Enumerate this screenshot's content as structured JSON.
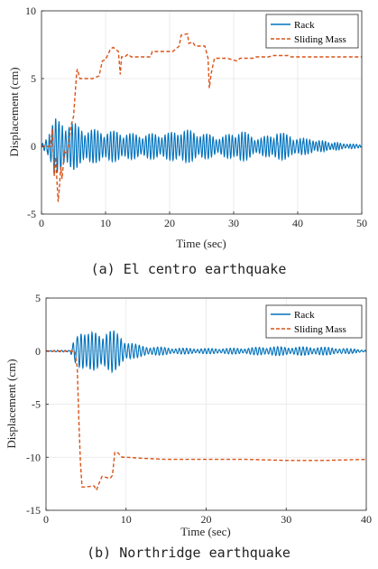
{
  "colors": {
    "rack": "#0072bd",
    "sliding": "#d95319",
    "grid": "#e6e6e6",
    "axis": "#262626"
  },
  "chart_data": [
    {
      "type": "line",
      "caption": "(a) El centro earthquake",
      "xlabel": "Time (sec)",
      "ylabel": "Displacement (cm)",
      "xlim": [
        0,
        50
      ],
      "ylim": [
        -5,
        10
      ],
      "xticks": [
        0,
        10,
        20,
        30,
        40,
        50
      ],
      "yticks": [
        -5,
        0,
        5,
        10
      ],
      "grid": true,
      "legend": "top-right",
      "series": [
        {
          "name": "Rack",
          "kind": "oscillation",
          "envelope": [
            [
              0,
              0.25
            ],
            [
              1.5,
              1.2
            ],
            [
              2,
              2.1
            ],
            [
              3,
              2.0
            ],
            [
              5,
              1.8
            ],
            [
              6,
              1.4
            ],
            [
              9,
              1.2
            ],
            [
              12,
              1.1
            ],
            [
              15,
              0.9
            ],
            [
              20,
              1.0
            ],
            [
              22,
              1.3
            ],
            [
              25,
              1.0
            ],
            [
              28,
              0.7
            ],
            [
              31,
              1.2
            ],
            [
              34,
              0.6
            ],
            [
              37,
              1.1
            ],
            [
              40,
              0.7
            ],
            [
              44,
              0.4
            ],
            [
              47,
              0.25
            ],
            [
              50,
              0.1
            ]
          ],
          "frequency_hz": 2.0
        },
        {
          "name": "Sliding Mass",
          "x": [
            0,
            1.4,
            1.7,
            2.0,
            2.2,
            2.6,
            2.8,
            3.0,
            3.2,
            3.6,
            4.0,
            4.6,
            5.0,
            5.5,
            5.6,
            6.0,
            8.0,
            9.0,
            9.5,
            10.0,
            10.8,
            11.2,
            12.0,
            12.3,
            12.5,
            13.0,
            13.5,
            14.0,
            17.0,
            17.3,
            20.5,
            21.5,
            21.8,
            22.8,
            23.0,
            23.6,
            24.0,
            25.5,
            26.0,
            26.2,
            26.5,
            27.0,
            29.0,
            30.5,
            31.0,
            33.0,
            33.5,
            35.5,
            36.0,
            38.5,
            39.0,
            42.5,
            43.0,
            50.0
          ],
          "y": [
            0,
            0,
            1.3,
            -2.2,
            -0.8,
            -4.1,
            -3.0,
            -1.5,
            -2.4,
            -0.4,
            -0.6,
            1.5,
            2.2,
            5.5,
            5.7,
            5.0,
            5.0,
            5.2,
            6.3,
            6.4,
            7.2,
            7.3,
            7.0,
            5.3,
            6.6,
            6.6,
            6.8,
            6.6,
            6.6,
            7.0,
            7.0,
            7.4,
            8.2,
            8.3,
            7.6,
            7.7,
            7.4,
            7.4,
            6.5,
            4.3,
            5.4,
            6.5,
            6.5,
            6.3,
            6.5,
            6.5,
            6.6,
            6.6,
            6.7,
            6.7,
            6.6,
            6.6,
            6.6,
            6.6
          ]
        }
      ]
    },
    {
      "type": "line",
      "caption": "(b) Northridge earthquake",
      "xlabel": "Time (sec)",
      "ylabel": "Displacement (cm)",
      "xlim": [
        0,
        40
      ],
      "ylim": [
        -15,
        5
      ],
      "xticks": [
        0,
        10,
        20,
        30,
        40
      ],
      "yticks": [
        -15,
        -10,
        -5,
        0,
        5
      ],
      "grid": true,
      "legend": "top-right",
      "series": [
        {
          "name": "Rack",
          "kind": "oscillation",
          "envelope": [
            [
              0,
              0.05
            ],
            [
              3,
              0.1
            ],
            [
              3.5,
              1.5
            ],
            [
              4.2,
              2.6
            ],
            [
              5,
              1.5
            ],
            [
              6,
              1.9
            ],
            [
              8.3,
              2.0
            ],
            [
              10,
              1.1
            ],
            [
              11,
              0.7
            ],
            [
              12,
              0.5
            ],
            [
              14,
              0.4
            ],
            [
              16,
              0.3
            ],
            [
              20,
              0.25
            ],
            [
              25,
              0.3
            ],
            [
              28,
              0.45
            ],
            [
              30,
              0.4
            ],
            [
              34,
              0.4
            ],
            [
              37,
              0.3
            ],
            [
              40,
              0.1
            ]
          ],
          "frequency_hz": 2.2
        },
        {
          "name": "Sliding Mass",
          "x": [
            0,
            3.6,
            3.9,
            4.1,
            4.3,
            4.5,
            5.0,
            6.0,
            6.3,
            6.6,
            7.0,
            7.5,
            8.0,
            8.3,
            8.6,
            9.0,
            9.5,
            10.0,
            12.0,
            15.0,
            20.0,
            25.0,
            30.0,
            35.0,
            40.0
          ],
          "y": [
            0,
            0,
            -1.5,
            -6.5,
            -10.5,
            -12.8,
            -12.8,
            -12.7,
            -13.1,
            -12.5,
            -11.8,
            -11.9,
            -12.0,
            -11.7,
            -9.5,
            -9.6,
            -10.0,
            -10.0,
            -10.1,
            -10.2,
            -10.2,
            -10.2,
            -10.3,
            -10.3,
            -10.2
          ]
        }
      ]
    }
  ]
}
